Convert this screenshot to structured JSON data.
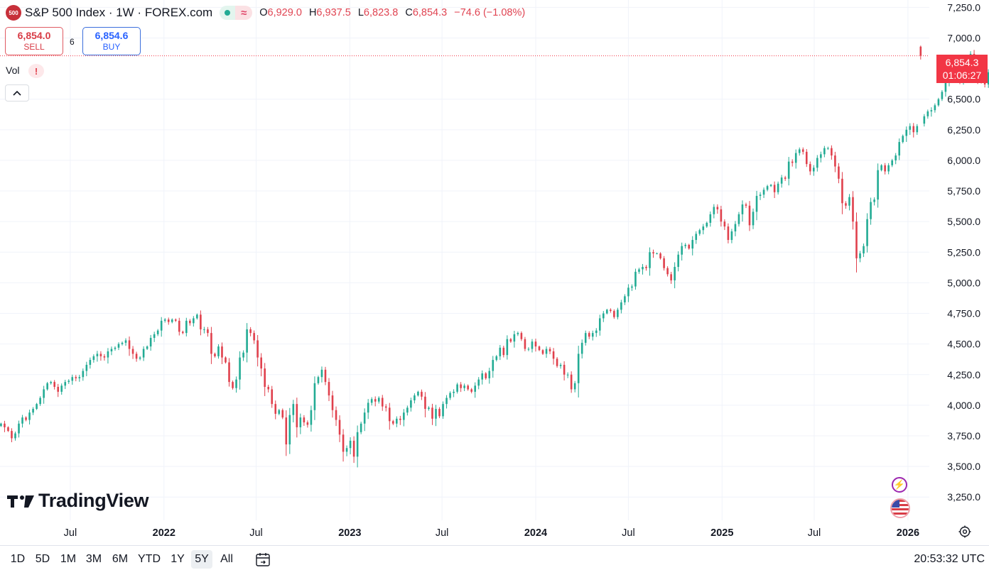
{
  "header": {
    "logo_text": "500",
    "title": "S&P 500 Index · 1W · FOREX.com",
    "ohlc": [
      {
        "label": "O",
        "value": "6,929.0"
      },
      {
        "label": "H",
        "value": "6,937.5"
      },
      {
        "label": "L",
        "value": "6,823.8"
      },
      {
        "label": "C",
        "value": "6,854.3"
      }
    ],
    "change": "−74.6 (−1.08%)",
    "status_wave_glyph": "≈"
  },
  "trade": {
    "sell_price": "6,854.0",
    "sell_label": "SELL",
    "spread": "6",
    "buy_price": "6,854.6",
    "buy_label": "BUY"
  },
  "volume": {
    "label": "Vol",
    "warning_glyph": "!"
  },
  "price_tag": {
    "price": "6,854.3",
    "countdown": "01:06:27"
  },
  "watermark": {
    "text": "TradingView"
  },
  "toolbar": {
    "ranges": [
      "1D",
      "5D",
      "1M",
      "3M",
      "6M",
      "YTD",
      "1Y",
      "5Y",
      "All"
    ],
    "active_range": "5Y",
    "time": "20:53:32 UTC"
  },
  "icons": {
    "bolt": "lightning-icon",
    "flag": "us-flag-icon",
    "settings": "gear-icon",
    "calendar": "calendar-goto-icon",
    "collapse": "chevron-up-icon"
  },
  "colors": {
    "up": "#22ab94",
    "down": "#e0404c",
    "tag": "#f23645",
    "grid": "#f0f3fa"
  },
  "chart_data": {
    "type": "candlestick",
    "interval": "1W",
    "y_axis": {
      "side": "right",
      "ticks": [
        3250,
        3500,
        3750,
        4000,
        4250,
        4500,
        4750,
        5000,
        5250,
        5500,
        5750,
        6000,
        6250,
        6500,
        7000,
        7250
      ],
      "tick_labels": [
        "3,250.0",
        "3,500.0",
        "3,750.0",
        "4,000.0",
        "4,250.0",
        "4,500.0",
        "4,750.0",
        "5,000.0",
        "5,250.0",
        "5,500.0",
        "5,750.0",
        "6,000.0",
        "6,250.0",
        "6,500.0",
        "7,000.0",
        "7,250.0"
      ],
      "range": [
        3060,
        7310
      ]
    },
    "x_axis": {
      "labels": [
        {
          "text": "2021",
          "date": "2021-01-01",
          "bold": true
        },
        {
          "text": "Jul",
          "date": "2021-07-01",
          "bold": false
        },
        {
          "text": "2022",
          "date": "2022-01-01",
          "bold": true
        },
        {
          "text": "Jul",
          "date": "2022-07-01",
          "bold": false
        },
        {
          "text": "2023",
          "date": "2023-01-01",
          "bold": true
        },
        {
          "text": "Jul",
          "date": "2023-07-01",
          "bold": false
        },
        {
          "text": "2024",
          "date": "2024-01-01",
          "bold": true
        },
        {
          "text": "Jul",
          "date": "2024-07-01",
          "bold": false
        },
        {
          "text": "2025",
          "date": "2025-01-01",
          "bold": true
        },
        {
          "text": "Jul",
          "date": "2025-07-01",
          "bold": false
        },
        {
          "text": "2026",
          "date": "2026-01-01",
          "bold": true
        }
      ],
      "range": [
        "2021-02-13",
        "2026-02-12"
      ]
    },
    "last_price": 6854.3,
    "current_bar": {
      "date": "2026-01-26",
      "open": 6929.0,
      "high": 6937.5,
      "low": 6823.8,
      "close": 6854.3
    },
    "closes_series": {
      "name": "",
      "start": "2021-02-15",
      "step_days": 7,
      "values": [
        3850,
        3820,
        3790,
        3730,
        3770,
        3850,
        3900,
        3880,
        3940,
        3970,
        4010,
        4060,
        4130,
        4180,
        4190,
        4150,
        4110,
        4160,
        4190,
        4200,
        4230,
        4220,
        4230,
        4280,
        4330,
        4370,
        4400,
        4420,
        4400,
        4390,
        4440,
        4460,
        4470,
        4500,
        4510,
        4530,
        4460,
        4420,
        4380,
        4390,
        4460,
        4480,
        4550,
        4580,
        4610,
        4690,
        4700,
        4680,
        4700,
        4690,
        4600,
        4590,
        4690,
        4670,
        4710,
        4740,
        4620,
        4620,
        4590,
        4420,
        4400,
        4480,
        4390,
        4350,
        4190,
        4140,
        4210,
        4390,
        4430,
        4620,
        4590,
        4530,
        4390,
        4300,
        4150,
        4130,
        4010,
        3930,
        3960,
        3900,
        3680,
        3920,
        4010,
        3820,
        3900,
        3860,
        3840,
        3960,
        4180,
        4230,
        4290,
        4190,
        4080,
        3960,
        3880,
        3760,
        3620,
        3650,
        3710,
        3580,
        3780,
        3850,
        3940,
        4020,
        4050,
        4030,
        4060,
        3990,
        3980,
        3870,
        3850,
        3890,
        3880,
        3940,
        3980,
        4040,
        4080,
        4110,
        4070,
        3970,
        3980,
        3890,
        3970,
        3910,
        4010,
        4060,
        4100,
        4110,
        4170,
        4140,
        4160,
        4130,
        4110,
        4160,
        4210,
        4260,
        4220,
        4280,
        4370,
        4400,
        4470,
        4410,
        4540,
        4520,
        4580,
        4590,
        4540,
        4460,
        4460,
        4520,
        4480,
        4450,
        4420,
        4460,
        4440,
        4380,
        4320,
        4330,
        4250,
        4250,
        4130,
        4180,
        4420,
        4510,
        4590,
        4560,
        4590,
        4610,
        4710,
        4750,
        4780,
        4770,
        4720,
        4780,
        4840,
        4890,
        4960,
        4970,
        5090,
        5110,
        5130,
        5120,
        5250,
        5240,
        5240,
        5200,
        5120,
        5070,
        5020,
        5130,
        5230,
        5300,
        5310,
        5280,
        5350,
        5400,
        5430,
        5460,
        5490,
        5560,
        5620,
        5600,
        5500,
        5460,
        5350,
        5420,
        5480,
        5560,
        5640,
        5630,
        5470,
        5580,
        5710,
        5720,
        5760,
        5790,
        5800,
        5740,
        5810,
        5860,
        5850,
        5990,
        5980,
        6060,
        6090,
        6070,
        5970,
        5910,
        5940,
        6020,
        6050,
        6100,
        6100,
        6040,
        5950,
        5850,
        5650,
        5630,
        5700,
        5500,
        5200,
        5240,
        5300,
        5520,
        5660,
        5680,
        5920,
        5960,
        5910,
        5960,
        6000,
        6040,
        6150,
        6200,
        6250,
        6280,
        6230,
        6280,
        6300,
        6360,
        6400,
        6410,
        6450,
        6500,
        6560,
        6650,
        6690,
        6720,
        6680,
        6650,
        6730,
        6810,
        6870,
        6740,
        6660,
        6650,
        6620,
        6720,
        6850,
        6830,
        6900,
        6920,
        6890,
        6930,
        6860
      ]
    }
  }
}
